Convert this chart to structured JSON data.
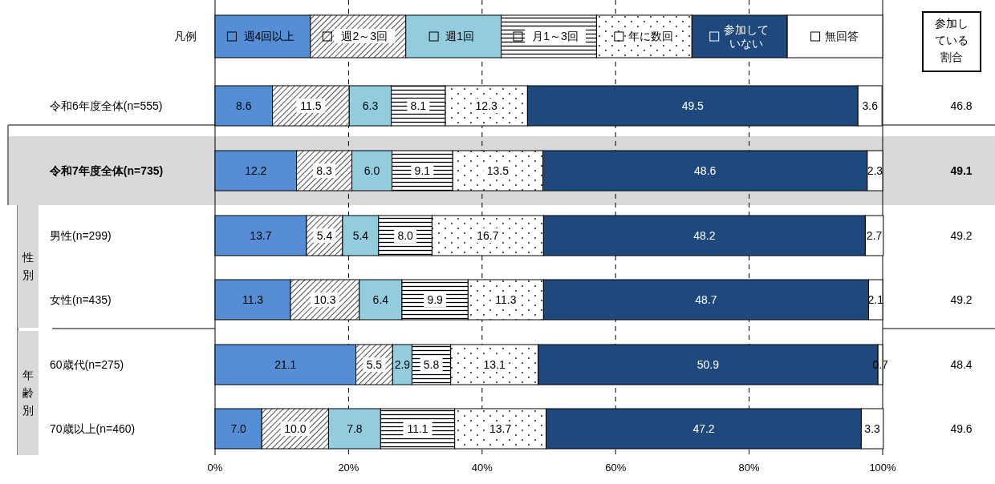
{
  "chart_data": {
    "type": "bar",
    "orientation": "horizontal",
    "stacked": true,
    "data_labels": true,
    "grid": "x",
    "legend": "top",
    "legend_title": "凡例",
    "categories": [
      "令和6年度全体(n=555)",
      "令和7年度全体(n=735)",
      "男性(n=299)",
      "女性(n=435)",
      "60歳代(n=275)",
      "70歳以上(n=460)"
    ],
    "xlim": [
      0,
      100
    ],
    "xticks": [
      {
        "value": 0,
        "label": "0%"
      },
      {
        "value": 20,
        "label": "20%"
      },
      {
        "value": 40,
        "label": "40%"
      },
      {
        "value": 60,
        "label": "60%"
      },
      {
        "value": 80,
        "label": "80%"
      },
      {
        "value": 100,
        "label": "100%"
      }
    ],
    "series": [
      {
        "name": "週4回以上",
        "color": "#558ed5",
        "values": [
          8.6,
          12.2,
          13.7,
          11.3,
          21.1,
          7.0
        ],
        "value_labels": [
          "8.6",
          "12.2",
          "13.7",
          "11.3",
          "21.1",
          "7.0"
        ]
      },
      {
        "name": "週2～3回",
        "color": "#000000",
        "values": [
          11.5,
          8.3,
          5.4,
          10.3,
          5.5,
          10.0
        ],
        "value_labels": [
          "11.5",
          "8.3",
          "5.4",
          "10.3",
          "5.5",
          "10.0"
        ]
      },
      {
        "name": "週1回",
        "color": "#93cddd",
        "values": [
          6.3,
          6.0,
          5.4,
          6.4,
          2.9,
          7.8
        ],
        "value_labels": [
          "6.3",
          "6.0",
          "5.4",
          "6.4",
          "2.9",
          "7.8"
        ]
      },
      {
        "name": "月1～3回",
        "color": "#000000",
        "values": [
          8.1,
          9.1,
          8.0,
          9.9,
          5.8,
          11.1
        ],
        "value_labels": [
          "8.1",
          "9.1",
          "8.0",
          "9.9",
          "5.8",
          "11.1"
        ]
      },
      {
        "name": "年に数回",
        "color": "#000000",
        "values": [
          12.3,
          13.5,
          16.7,
          11.3,
          13.1,
          13.7
        ],
        "value_labels": [
          "12.3",
          "13.5",
          "16.7",
          "11.3",
          "13.1",
          "13.7"
        ]
      },
      {
        "name": "参加していない",
        "color": "#1f497d",
        "values": [
          49.5,
          48.6,
          48.2,
          48.7,
          50.9,
          47.2
        ],
        "value_labels": [
          "49.5",
          "48.6",
          "48.2",
          "48.7",
          "50.9",
          "47.2"
        ]
      },
      {
        "name": "無回答",
        "color": "#ffffff",
        "values": [
          3.6,
          2.3,
          2.7,
          2.1,
          0.7,
          3.3
        ],
        "value_labels": [
          "3.6",
          "2.3",
          "2.7",
          "2.1",
          "0.7",
          "3.3"
        ]
      }
    ],
    "bands": [
      {
        "axis": "y",
        "from": "令和7年度全体(n=735)",
        "to": "令和7年度全体(n=735)",
        "color": "#d9d9d9"
      }
    ],
    "annotations": [
      "参加している割合",
      "46.8",
      "49.1",
      "49.2",
      "49.2",
      "48.4",
      "49.6",
      "性別",
      "年齢別"
    ]
  }
}
